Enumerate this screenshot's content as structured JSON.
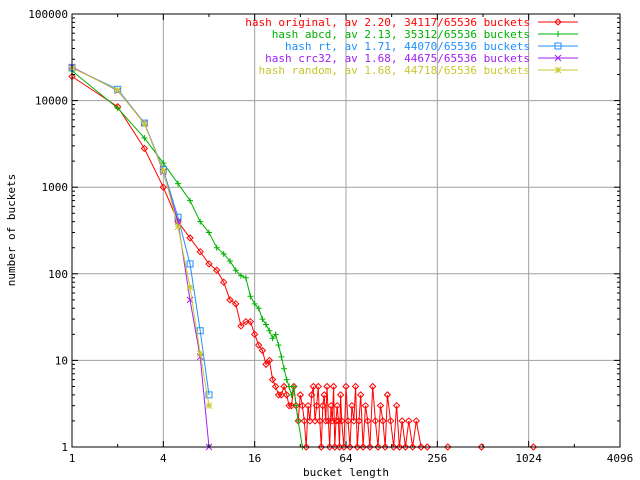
{
  "chart_data": {
    "type": "line",
    "xlabel": "bucket length",
    "ylabel": "number of buckets",
    "x_scale": "log2",
    "y_scale": "log10",
    "xlim": [
      1,
      4096
    ],
    "ylim": [
      1,
      100000
    ],
    "x_ticks": [
      "1",
      "4",
      "16",
      "64",
      "256",
      "1024",
      "4096"
    ],
    "y_ticks": [
      "1",
      "10",
      "100",
      "1000",
      "10000",
      "100000"
    ],
    "grid": true,
    "legend_position": "top-right",
    "series": [
      {
        "name": "hash original, av 2.20, 34117/65536 buckets",
        "color": "#ff0000",
        "marker": "diamond",
        "points": [
          [
            1,
            19000
          ],
          [
            2,
            8500
          ],
          [
            3,
            2800
          ],
          [
            4,
            1000
          ],
          [
            5,
            400
          ],
          [
            6,
            260
          ],
          [
            7,
            180
          ],
          [
            8,
            130
          ],
          [
            9,
            110
          ],
          [
            10,
            80
          ],
          [
            11,
            50
          ],
          [
            12,
            45
          ],
          [
            13,
            25
          ],
          [
            14,
            28
          ],
          [
            15,
            28
          ],
          [
            16,
            20
          ],
          [
            17,
            15
          ],
          [
            18,
            13
          ],
          [
            19,
            9
          ],
          [
            20,
            10
          ],
          [
            21,
            6
          ],
          [
            22,
            5
          ],
          [
            23,
            4
          ],
          [
            24,
            4
          ],
          [
            25,
            5
          ],
          [
            26,
            4
          ],
          [
            27,
            3
          ],
          [
            28,
            3
          ],
          [
            29,
            5
          ],
          [
            30,
            3
          ],
          [
            31,
            2
          ],
          [
            32,
            4
          ],
          [
            33,
            3
          ],
          [
            34,
            2
          ],
          [
            35,
            1
          ],
          [
            36,
            3
          ],
          [
            37,
            2
          ],
          [
            38,
            4
          ],
          [
            39,
            5
          ],
          [
            40,
            2
          ],
          [
            41,
            3
          ],
          [
            42,
            5
          ],
          [
            43,
            2
          ],
          [
            44,
            1
          ],
          [
            45,
            3
          ],
          [
            46,
            4
          ],
          [
            47,
            2
          ],
          [
            48,
            5
          ],
          [
            49,
            2
          ],
          [
            50,
            1
          ],
          [
            51,
            3
          ],
          [
            52,
            2
          ],
          [
            53,
            5
          ],
          [
            54,
            1
          ],
          [
            55,
            2
          ],
          [
            56,
            3
          ],
          [
            57,
            2
          ],
          [
            58,
            1
          ],
          [
            59,
            4
          ],
          [
            60,
            2
          ],
          [
            62,
            1
          ],
          [
            64,
            5
          ],
          [
            66,
            2
          ],
          [
            68,
            1
          ],
          [
            70,
            3
          ],
          [
            72,
            2
          ],
          [
            74,
            5
          ],
          [
            76,
            1
          ],
          [
            78,
            2
          ],
          [
            80,
            4
          ],
          [
            83,
            1
          ],
          [
            86,
            3
          ],
          [
            89,
            2
          ],
          [
            92,
            1
          ],
          [
            96,
            5
          ],
          [
            100,
            2
          ],
          [
            104,
            1
          ],
          [
            108,
            3
          ],
          [
            112,
            2
          ],
          [
            116,
            1
          ],
          [
            120,
            4
          ],
          [
            126,
            2
          ],
          [
            132,
            1
          ],
          [
            138,
            3
          ],
          [
            144,
            1
          ],
          [
            150,
            2
          ],
          [
            158,
            1
          ],
          [
            166,
            2
          ],
          [
            176,
            1
          ],
          [
            186,
            2
          ],
          [
            200,
            1
          ],
          [
            220,
            1
          ],
          [
            300,
            1
          ],
          [
            500,
            1
          ],
          [
            1100,
            1
          ]
        ]
      },
      {
        "name": "hash abcd, av 2.13, 35312/65536 buckets",
        "color": "#00b000",
        "marker": "plus",
        "points": [
          [
            1,
            22000
          ],
          [
            2,
            8200
          ],
          [
            3,
            3700
          ],
          [
            4,
            1900
          ],
          [
            5,
            1100
          ],
          [
            6,
            700
          ],
          [
            7,
            400
          ],
          [
            8,
            300
          ],
          [
            9,
            200
          ],
          [
            10,
            170
          ],
          [
            11,
            140
          ],
          [
            12,
            110
          ],
          [
            13,
            95
          ],
          [
            14,
            90
          ],
          [
            15,
            55
          ],
          [
            16,
            45
          ],
          [
            17,
            40
          ],
          [
            18,
            30
          ],
          [
            19,
            26
          ],
          [
            20,
            22
          ],
          [
            21,
            18
          ],
          [
            22,
            20
          ],
          [
            23,
            15
          ],
          [
            24,
            11
          ],
          [
            25,
            8
          ],
          [
            26,
            6
          ],
          [
            27,
            5
          ],
          [
            28,
            4
          ],
          [
            29,
            5
          ],
          [
            30,
            3
          ],
          [
            31,
            2
          ],
          [
            33,
            1
          ]
        ]
      },
      {
        "name": "hash rt, av 1.71, 44070/65536 buckets",
        "color": "#1e90ff",
        "marker": "square",
        "points": [
          [
            1,
            24000
          ],
          [
            2,
            13500
          ],
          [
            3,
            5500
          ],
          [
            4,
            1600
          ],
          [
            5,
            450
          ],
          [
            6,
            130
          ],
          [
            7,
            22
          ],
          [
            8,
            4
          ]
        ]
      },
      {
        "name": "hash crc32, av 1.68, 44675/65536 buckets",
        "color": "#a020f0",
        "marker": "cross",
        "points": [
          [
            1,
            24500
          ],
          [
            2,
            13000
          ],
          [
            3,
            5500
          ],
          [
            4,
            1500
          ],
          [
            5,
            400
          ],
          [
            6,
            50
          ],
          [
            7,
            11
          ],
          [
            8,
            1
          ]
        ]
      },
      {
        "name": "hash random, av 1.68, 44718/65536 buckets",
        "color": "#c8c830",
        "marker": "star",
        "points": [
          [
            1,
            24000
          ],
          [
            2,
            13200
          ],
          [
            3,
            5400
          ],
          [
            4,
            1550
          ],
          [
            5,
            350
          ],
          [
            6,
            70
          ],
          [
            7,
            12
          ],
          [
            8,
            3
          ]
        ]
      }
    ]
  }
}
